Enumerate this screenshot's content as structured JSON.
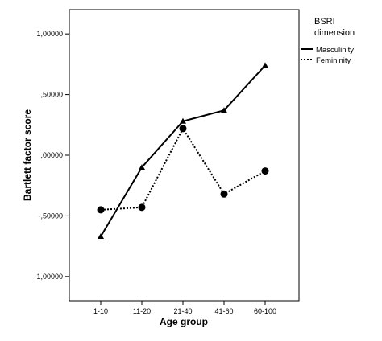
{
  "chart_data": {
    "type": "line",
    "xlabel": "Age group",
    "ylabel": "Bartlett factor score",
    "categories": [
      "1-10",
      "11-20",
      "21-40",
      "41-60",
      "60-100"
    ],
    "ylim": [
      -1.2,
      1.2
    ],
    "yticks": [
      -1.0,
      -0.5,
      0.0,
      0.5,
      1.0
    ],
    "ytick_labels": [
      "-1,00000",
      "-,50000",
      ",00000",
      ",50000",
      "1,00000"
    ],
    "grid": false,
    "legend": {
      "title": "BSRI dimension",
      "placement": "right",
      "entries": [
        "Masculinity",
        "Femininity"
      ]
    },
    "series": [
      {
        "name": "Masculinity",
        "values": [
          -0.67,
          -0.1,
          0.28,
          0.37,
          0.74
        ],
        "line": "solid",
        "marker": "triangle",
        "color": "#000000"
      },
      {
        "name": "Femininity",
        "values": [
          -0.45,
          -0.43,
          0.22,
          -0.32,
          -0.13
        ],
        "line": "dotted",
        "marker": "circle",
        "color": "#000000"
      }
    ]
  }
}
